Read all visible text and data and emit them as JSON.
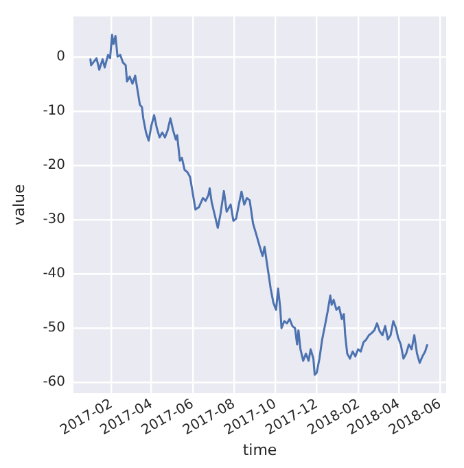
{
  "chart_data": {
    "type": "line",
    "xlabel": "time",
    "ylabel": "value",
    "x": [
      "2017-01-01",
      "2017-01-02",
      "2017-01-10",
      "2017-01-14",
      "2017-01-19",
      "2017-01-22",
      "2017-01-27",
      "2017-01-30",
      "2017-02-02",
      "2017-02-04",
      "2017-02-07",
      "2017-02-10",
      "2017-02-14",
      "2017-02-18",
      "2017-02-22",
      "2017-02-24",
      "2017-02-28",
      "2017-03-04",
      "2017-03-08",
      "2017-03-11",
      "2017-03-15",
      "2017-03-18",
      "2017-03-20",
      "2017-03-24",
      "2017-03-28",
      "2017-04-01",
      "2017-04-05",
      "2017-04-09",
      "2017-04-13",
      "2017-04-17",
      "2017-04-21",
      "2017-04-25",
      "2017-04-29",
      "2017-05-03",
      "2017-05-07",
      "2017-05-09",
      "2017-05-13",
      "2017-05-16",
      "2017-05-20",
      "2017-05-24",
      "2017-05-28",
      "2017-06-01",
      "2017-06-05",
      "2017-06-10",
      "2017-06-16",
      "2017-06-20",
      "2017-06-24",
      "2017-06-26",
      "2017-06-29",
      "2017-07-04",
      "2017-07-08",
      "2017-07-12",
      "2017-07-17",
      "2017-07-21",
      "2017-07-27",
      "2017-07-31",
      "2017-08-04",
      "2017-08-08",
      "2017-08-12",
      "2017-08-16",
      "2017-08-20",
      "2017-08-24",
      "2017-08-29",
      "2017-09-03",
      "2017-09-08",
      "2017-09-12",
      "2017-09-15",
      "2017-09-18",
      "2017-09-21",
      "2017-09-24",
      "2017-09-28",
      "2017-10-02",
      "2017-10-05",
      "2017-10-08",
      "2017-10-10",
      "2017-10-14",
      "2017-10-18",
      "2017-10-22",
      "2017-10-26",
      "2017-10-30",
      "2017-11-02",
      "2017-11-04",
      "2017-11-07",
      "2017-11-11",
      "2017-11-15",
      "2017-11-19",
      "2017-11-22",
      "2017-11-26",
      "2017-11-28",
      "2017-12-01",
      "2017-12-05",
      "2017-12-09",
      "2017-12-13",
      "2017-12-17",
      "2017-12-21",
      "2017-12-23",
      "2017-12-26",
      "2017-12-30",
      "2018-01-03",
      "2018-01-07",
      "2018-01-10",
      "2018-01-12",
      "2018-01-15",
      "2018-01-19",
      "2018-01-23",
      "2018-01-27",
      "2018-01-31",
      "2018-02-04",
      "2018-02-08",
      "2018-02-12",
      "2018-02-16",
      "2018-02-20",
      "2018-02-24",
      "2018-02-28",
      "2018-03-04",
      "2018-03-08",
      "2018-03-12",
      "2018-03-16",
      "2018-03-20",
      "2018-03-24",
      "2018-03-28",
      "2018-03-31",
      "2018-04-04",
      "2018-04-08",
      "2018-04-12",
      "2018-04-16",
      "2018-04-20",
      "2018-04-24",
      "2018-04-28",
      "2018-05-02",
      "2018-05-06",
      "2018-05-10",
      "2018-05-13"
    ],
    "series": [
      {
        "color": "#4c72b0",
        "values": [
          -0.4,
          -1.5,
          -0.2,
          -2.3,
          -0.4,
          -1.9,
          0.4,
          -0.2,
          4.1,
          2.4,
          3.9,
          0.1,
          0.4,
          -1,
          -1.5,
          -4.5,
          -3.6,
          -4.9,
          -3.4,
          -5.7,
          -8.8,
          -9.2,
          -11.3,
          -13.9,
          -15.4,
          -12.6,
          -10.7,
          -13.1,
          -14.8,
          -13.9,
          -14.8,
          -13.5,
          -11.3,
          -13.5,
          -15.2,
          -14.4,
          -19.1,
          -18.6,
          -20.8,
          -21.2,
          -22.1,
          -25.1,
          -28.1,
          -27.7,
          -26,
          -26.5,
          -25.5,
          -24.2,
          -26.8,
          -29.4,
          -31.5,
          -28.9,
          -24.7,
          -28.5,
          -27.2,
          -30.2,
          -29.8,
          -27.2,
          -24.8,
          -27.2,
          -26,
          -26.4,
          -30.7,
          -32.8,
          -35,
          -36.7,
          -35,
          -37.6,
          -40.1,
          -42.7,
          -45.3,
          -46.6,
          -42.7,
          -46.1,
          -50,
          -48.7,
          -49.1,
          -48.3,
          -49.6,
          -50,
          -53,
          -50.4,
          -53.9,
          -56,
          -54.7,
          -56,
          -53.9,
          -55.6,
          -58.6,
          -58.2,
          -55.6,
          -52.1,
          -49.6,
          -47,
          -44,
          -45.7,
          -44.8,
          -46.6,
          -46.1,
          -48.3,
          -47.4,
          -51.3,
          -54.7,
          -55.6,
          -54.3,
          -55.2,
          -53.9,
          -54.3,
          -52.6,
          -52.1,
          -51.3,
          -50.9,
          -50.4,
          -49.1,
          -50.6,
          -51.3,
          -49.6,
          -52.1,
          -51.3,
          -48.7,
          -50,
          -51.7,
          -53,
          -55.6,
          -54.7,
          -53,
          -53.9,
          -51.3,
          -54.7,
          -56.4,
          -55.2,
          -54.3,
          -53.1
        ]
      }
    ],
    "xlim": [
      "2016-12-07",
      "2018-06-10"
    ],
    "xticks": [
      "2017-02",
      "2017-04",
      "2017-06",
      "2017-08",
      "2017-10",
      "2017-12",
      "2018-02",
      "2018-04",
      "2018-06"
    ],
    "ylim": [
      -62,
      7.5
    ],
    "yticks": [
      0,
      -10,
      -20,
      -30,
      -40,
      -50,
      -60
    ],
    "grid": true,
    "marker": "none",
    "line_style": "solid",
    "legend": false
  }
}
